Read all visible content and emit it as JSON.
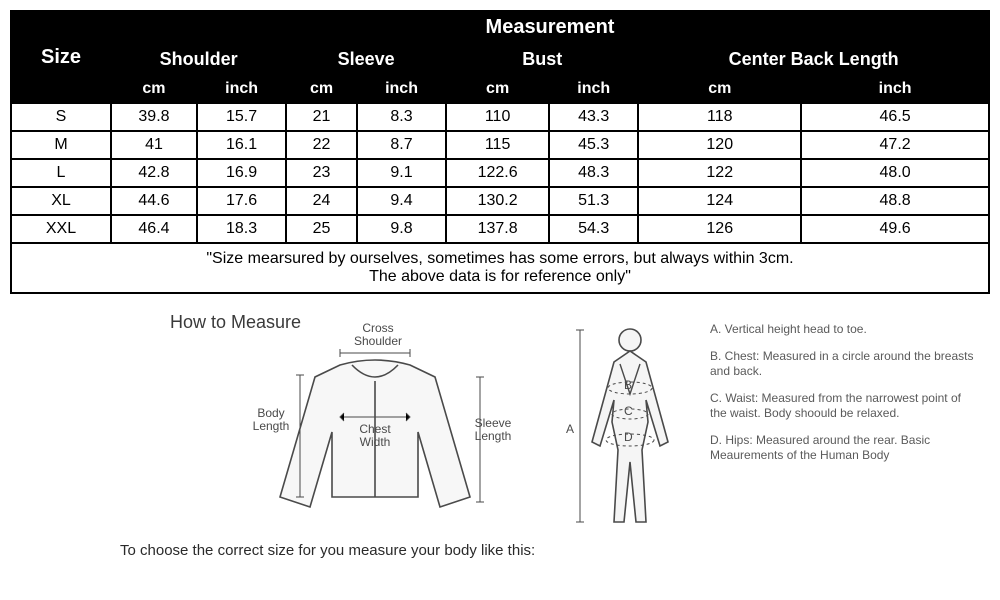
{
  "table": {
    "header_bg": "#000000",
    "header_fg": "#ffffff",
    "border_color": "#000000",
    "title": "Measurement",
    "size_label": "Size",
    "groups": [
      "Shoulder",
      "Sleeve",
      "Bust",
      "Center Back Length"
    ],
    "units": [
      "cm",
      "inch",
      "cm",
      "inch",
      "cm",
      "inch",
      "cm",
      "inch"
    ],
    "rows": [
      {
        "size": "S",
        "vals": [
          "39.8",
          "15.7",
          "21",
          "8.3",
          "110",
          "43.3",
          "118",
          "46.5"
        ]
      },
      {
        "size": "M",
        "vals": [
          "41",
          "16.1",
          "22",
          "8.7",
          "115",
          "45.3",
          "120",
          "47.2"
        ]
      },
      {
        "size": "L",
        "vals": [
          "42.8",
          "16.9",
          "23",
          "9.1",
          "122.6",
          "48.3",
          "122",
          "48.0"
        ]
      },
      {
        "size": "XL",
        "vals": [
          "44.6",
          "17.6",
          "24",
          "9.4",
          "130.2",
          "51.3",
          "124",
          "48.8"
        ]
      },
      {
        "size": "XXL",
        "vals": [
          "46.4",
          "18.3",
          "25",
          "9.8",
          "137.8",
          "54.3",
          "126",
          "49.6"
        ]
      }
    ],
    "note_line1": "\"Size mearsured by ourselves, sometimes has some errors, but always within 3cm.",
    "note_line2": "The above data is for reference only\""
  },
  "howto": {
    "title": "How to Measure",
    "labels": {
      "cross_shoulder": "Cross\nShoulder",
      "body_length": "Body\nLength",
      "chest_width": "Chest\nWidth",
      "sleeve_length": "Sleeve\nLength"
    },
    "bottom_text": "To choose the correct size for you measure your body like this:",
    "legend": {
      "a": "A. Vertical height head to toe.",
      "b": "B. Chest: Measured in a circle around the breasts and back.",
      "c": "C. Waist: Measured from the narrowest point of the waist. Body shoould be relaxed.",
      "d": "D. Hips: Measured around the rear. Basic Meaurements of the Human Body"
    },
    "figure_letters": {
      "a": "A",
      "b": "B",
      "c": "C",
      "d": "D"
    },
    "colors": {
      "line": "#4a4a4a",
      "fill": "#f5f5f5",
      "text": "#4a4a4a"
    }
  }
}
